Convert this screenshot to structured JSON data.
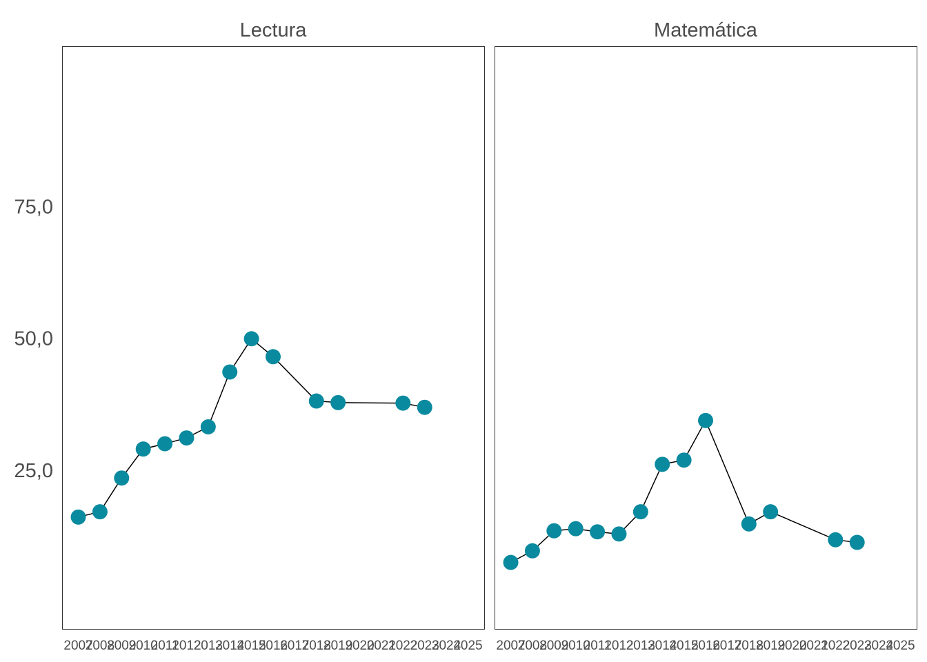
{
  "chart_data": {
    "type": "line",
    "color": "#0a8a9f",
    "line_color": "#000000",
    "ylim": [
      0,
      100
    ],
    "xlim": [
      2006.25,
      2025.75
    ],
    "grid": false,
    "yticks": [
      {
        "value": 25,
        "label": "25,0"
      },
      {
        "value": 50,
        "label": "50,0"
      },
      {
        "value": 75,
        "label": "75,0"
      }
    ],
    "xticks": [
      "2007",
      "2008",
      "2009",
      "2010",
      "2011",
      "2012",
      "2013",
      "2014",
      "2015",
      "2016",
      "2017",
      "2018",
      "2019",
      "2020",
      "2021",
      "2022",
      "2023",
      "2024",
      "2025"
    ],
    "panels": [
      {
        "title": "Lectura",
        "x": [
          2007,
          2008,
          2009,
          2010,
          2011,
          2012,
          2013,
          2014,
          2015,
          2016,
          2018,
          2019,
          2022,
          2023
        ],
        "y": [
          16.1,
          17.1,
          23.5,
          29.0,
          30.0,
          31.1,
          33.2,
          43.6,
          49.9,
          46.5,
          38.1,
          37.8,
          37.7,
          36.9
        ]
      },
      {
        "title": "Matemática",
        "x": [
          2007,
          2008,
          2009,
          2010,
          2011,
          2012,
          2013,
          2014,
          2015,
          2016,
          2018,
          2019,
          2022,
          2023
        ],
        "y": [
          7.5,
          9.7,
          13.5,
          13.9,
          13.3,
          12.9,
          17.1,
          26.1,
          26.9,
          34.4,
          14.8,
          17.1,
          11.8,
          11.3
        ]
      }
    ]
  }
}
